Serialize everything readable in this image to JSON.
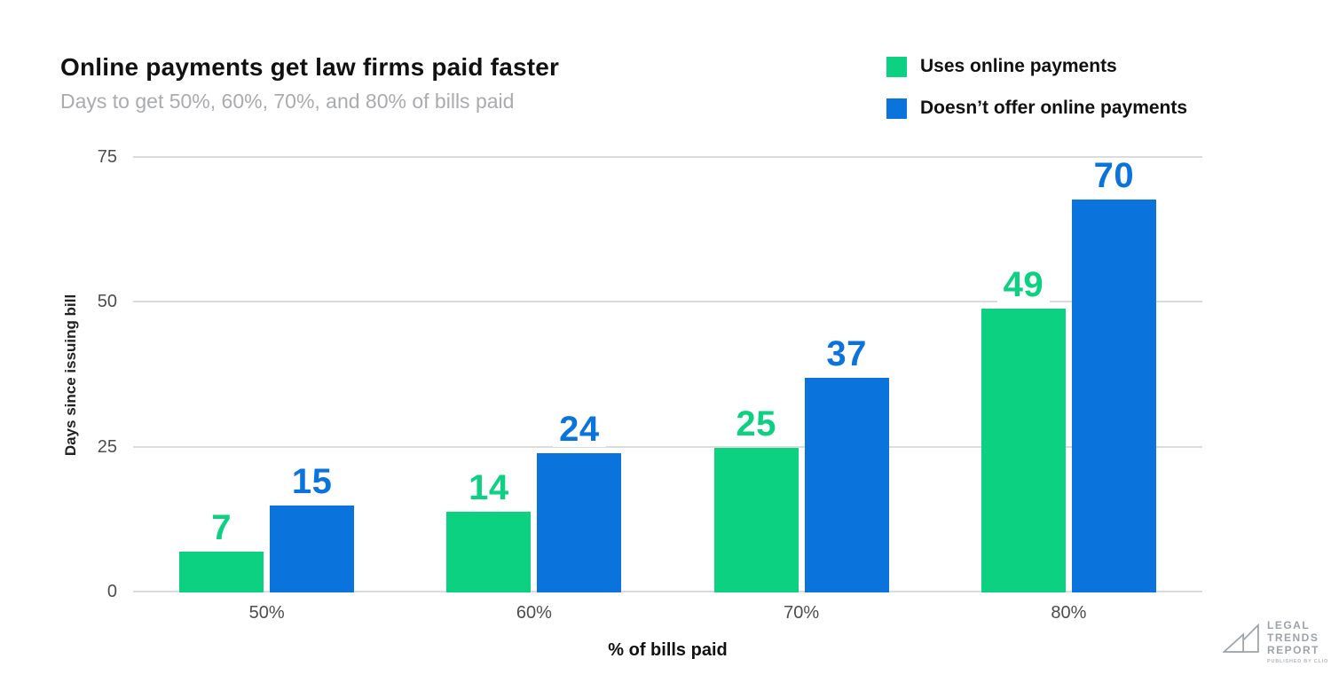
{
  "title": "Online payments get law firms paid faster",
  "subtitle": "Days to get 50%, 60%, 70%, and 80% of bills paid",
  "legend": {
    "items": [
      {
        "label": "Uses online payments",
        "color": "#0BD181"
      },
      {
        "label": "Doesn’t offer online payments",
        "color": "#0A73DC"
      }
    ]
  },
  "chart_data": {
    "type": "bar",
    "title": "Online payments get law firms paid faster",
    "subtitle": "Days to get 50%, 60%, 70%, and 80% of bills paid",
    "categories": [
      "50%",
      "60%",
      "70%",
      "80%"
    ],
    "series": [
      {
        "name": "Uses online payments",
        "color": "#0BD181",
        "values": [
          7,
          14,
          25,
          49
        ]
      },
      {
        "name": "Doesn’t offer online payments",
        "color": "#0A73DC",
        "values": [
          15,
          24,
          37,
          70
        ]
      }
    ],
    "xlabel": "% of bills paid",
    "ylabel": "Days since issuing bill",
    "ylim": [
      0,
      75
    ],
    "yticks": [
      0,
      25,
      50,
      75
    ],
    "grid": true,
    "gridline_color": "#dbdbdb",
    "legend_position": "top-right",
    "value_labels": true
  },
  "logo": {
    "line1": "LEGAL",
    "line2": "TRENDS",
    "line3": "REPORT",
    "tagline": "PUBLISHED BY CLIO"
  }
}
